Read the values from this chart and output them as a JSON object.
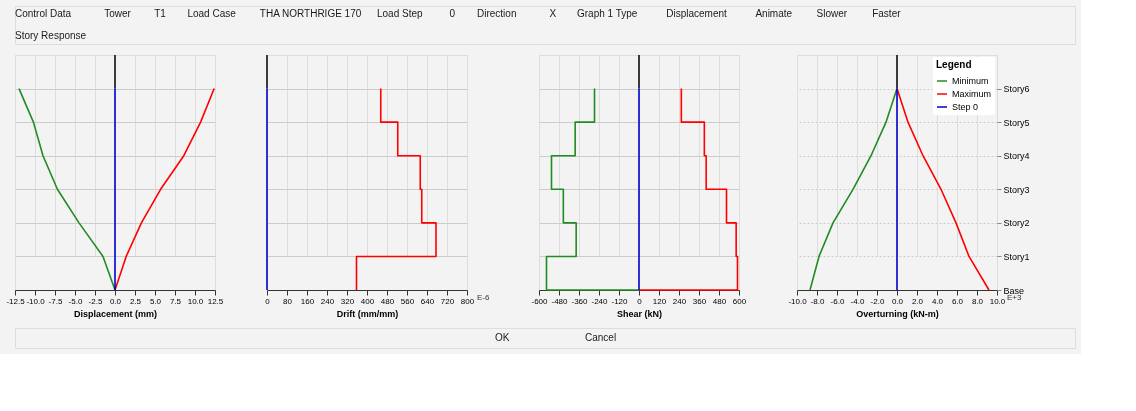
{
  "chart_data": [
    {
      "type": "other",
      "annotations": [
        "Control Data",
        "Tower",
        "T1",
        "Load Case",
        "THA NORTHRIGE 170",
        "Load Step",
        "0",
        "Direction",
        "X",
        "Graph 1 Type",
        "Displacement",
        "Animate",
        "Slower",
        "Faster",
        "Story Response"
      ]
    },
    {
      "type": "line",
      "orientation": "horizontal",
      "xlabel": "Displacement (mm)",
      "xlim": [
        -12.5,
        12.5
      ],
      "tick_labels": "x",
      "xticks": [
        {
          "value": -12.5,
          "label": "-12.5"
        },
        {
          "value": -10,
          "label": "-10.0"
        },
        {
          "value": -7.5,
          "label": "-7.5"
        },
        {
          "value": -5,
          "label": "-5.0"
        },
        {
          "value": -2.5,
          "label": "-2.5"
        },
        {
          "value": 0,
          "label": "0.0"
        },
        {
          "value": 2.5,
          "label": "2.5"
        },
        {
          "value": 5,
          "label": "5.0"
        },
        {
          "value": 7.5,
          "label": "7.5"
        },
        {
          "value": 10,
          "label": "10.0"
        },
        {
          "value": 12.5,
          "label": "12.5"
        }
      ],
      "categories": [
        null,
        null,
        null,
        null,
        null,
        null,
        null
      ],
      "grid": true,
      "ref_lines": [
        {
          "axis": "x",
          "value": 0,
          "color": "#000000"
        }
      ],
      "series": [
        {
          "color": "#228b22",
          "values": [
            -12.0,
            -10.2,
            -9.0,
            -7.2,
            -4.5,
            -1.5,
            0
          ]
        },
        {
          "color": "#ff0000",
          "values": [
            12.4,
            10.7,
            8.6,
            5.7,
            3.3,
            1.4,
            0
          ]
        },
        {
          "color": "#0000cd",
          "values": [
            0,
            0,
            0,
            0,
            0,
            0,
            0
          ]
        }
      ]
    },
    {
      "type": "line",
      "orientation": "horizontal",
      "xlabel": "Drift (mm/mm)",
      "xlim": [
        0,
        800
      ],
      "tick_labels": "x",
      "xticks": [
        0,
        80,
        160,
        240,
        320,
        400,
        480,
        560,
        640,
        720,
        800
      ],
      "categories": [
        null,
        null,
        null,
        null,
        null,
        null,
        null
      ],
      "grid": true,
      "ref_lines": [
        {
          "axis": "x",
          "value": 0,
          "color": "#000000"
        }
      ],
      "annotations": [
        "E-6"
      ],
      "series": [
        {
          "type": "step",
          "color": "#ff0000",
          "values": [
            455,
            523,
            613,
            619,
            676,
            358,
            358
          ]
        },
        {
          "color": "#0000cd",
          "values": [
            0,
            0,
            0,
            0,
            0,
            0,
            0
          ]
        }
      ]
    },
    {
      "type": "line",
      "orientation": "horizontal",
      "xlabel": "Shear (kN)",
      "xlim": [
        -600,
        600
      ],
      "tick_labels": "x",
      "xticks": [
        -600,
        -480,
        -360,
        -240,
        -120,
        0,
        120,
        240,
        360,
        480,
        600
      ],
      "categories": [
        null,
        null,
        null,
        null,
        null,
        null,
        null
      ],
      "grid": true,
      "ref_lines": [
        {
          "axis": "x",
          "value": 0,
          "color": "#000000"
        }
      ],
      "series": [
        {
          "type": "step",
          "color": "#228b22",
          "values": [
            -267,
            -383,
            -525,
            -454,
            -377,
            -555,
            0
          ]
        },
        {
          "type": "step",
          "color": "#ff0000",
          "values": [
            254,
            392,
            403,
            525,
            583,
            591,
            0
          ]
        },
        {
          "color": "#0000cd",
          "values": [
            0,
            0,
            0,
            0,
            0,
            0,
            0
          ]
        }
      ]
    },
    {
      "type": "line",
      "orientation": "horizontal",
      "xlabel": "Overturning (kN-m)",
      "xlim": [
        -10,
        10
      ],
      "xticks": [
        {
          "value": -10,
          "label": "-10.0"
        },
        {
          "value": -8,
          "label": "-8.0"
        },
        {
          "value": -6,
          "label": "-6.0"
        },
        {
          "value": -4,
          "label": "-4.0"
        },
        {
          "value": -2,
          "label": "-2.0"
        },
        {
          "value": 0,
          "label": "0.0"
        },
        {
          "value": 2,
          "label": "2.0"
        },
        {
          "value": 4,
          "label": "4.0"
        },
        {
          "value": 6,
          "label": "6.0"
        },
        {
          "value": 8,
          "label": "8.0"
        },
        {
          "value": 10,
          "label": "10.0"
        }
      ],
      "categories": [
        "Story6",
        "Story5",
        "Story4",
        "Story3",
        "Story2",
        "Story1",
        "Base"
      ],
      "grid": true,
      "ref_lines": [
        {
          "axis": "x",
          "value": 0,
          "color": "#000000"
        }
      ],
      "annotations": [
        "E+3"
      ],
      "legend": "top right",
      "legend_title": "Legend",
      "series": [
        {
          "name": "Minimum",
          "color": "#228b22",
          "values": [
            0,
            -1.1,
            -2.6,
            -4.4,
            -6.4,
            -7.8,
            -8.7
          ]
        },
        {
          "name": "Maximum",
          "color": "#ff0000",
          "values": [
            0,
            1.1,
            2.6,
            4.4,
            5.9,
            7.2,
            9.2
          ]
        },
        {
          "name": "Step 0",
          "color": "#0000cd",
          "values": [
            0,
            0,
            0,
            0,
            0,
            0,
            0
          ]
        }
      ]
    },
    {
      "type": "other",
      "annotations": [
        "OK",
        "Cancel"
      ]
    }
  ]
}
